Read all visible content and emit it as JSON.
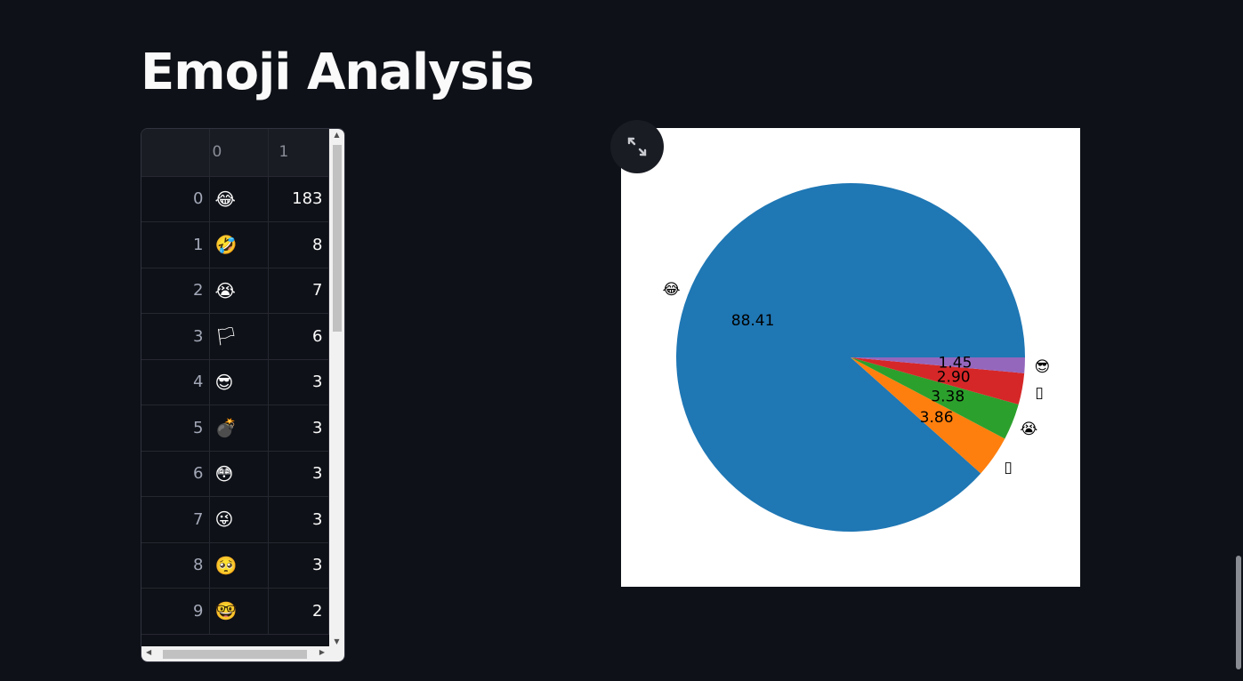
{
  "page": {
    "title": "Emoji Analysis"
  },
  "dataframe": {
    "columns": [
      "0",
      "1"
    ],
    "rows": [
      {
        "index": "0",
        "emoji": "😂",
        "count": "183"
      },
      {
        "index": "1",
        "emoji": "🤣",
        "count": "8"
      },
      {
        "index": "2",
        "emoji": "😭",
        "count": "7"
      },
      {
        "index": "3",
        "emoji": "🏳",
        "count": "6"
      },
      {
        "index": "4",
        "emoji": "😎",
        "count": "3"
      },
      {
        "index": "5",
        "emoji": "💣",
        "count": "3"
      },
      {
        "index": "6",
        "emoji": "😳",
        "count": "3"
      },
      {
        "index": "7",
        "emoji": "😜",
        "count": "3"
      },
      {
        "index": "8",
        "emoji": "🥺",
        "count": "3"
      },
      {
        "index": "9",
        "emoji": "🤓",
        "count": "2"
      }
    ]
  },
  "chart_data": {
    "type": "pie",
    "labels": [
      "😂",
      "🤣",
      "😭",
      "🏳",
      "😎"
    ],
    "values": [
      88.41,
      3.86,
      3.38,
      2.9,
      1.45
    ],
    "pct_labels": [
      "88.41",
      "3.86",
      "3.38",
      "2.90",
      "1.45"
    ],
    "colors": [
      "#1f77b4",
      "#ff7f0e",
      "#2ca02c",
      "#d62728",
      "#9467bd"
    ],
    "label_glyphs": [
      "😂",
      "▯",
      "😭",
      "▯",
      "😎"
    ]
  },
  "icons": {
    "expand": "expand-icon"
  }
}
